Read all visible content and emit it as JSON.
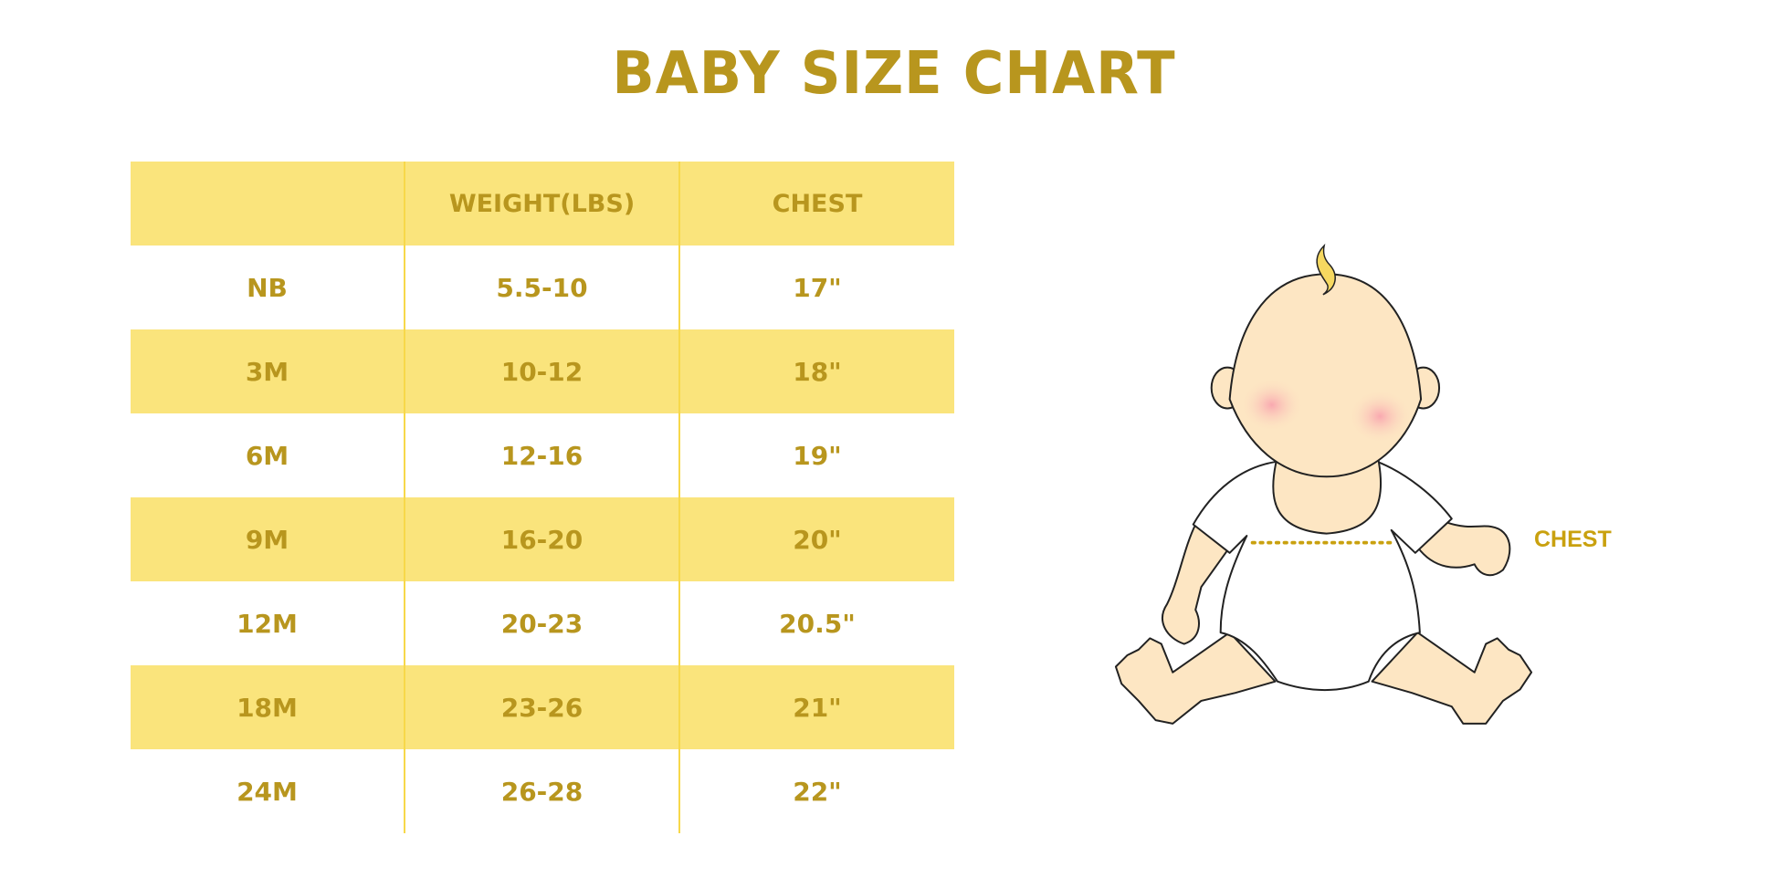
{
  "title": "BABY SIZE CHART",
  "table": {
    "headers": [
      "",
      "WEIGHT(LBS)",
      "CHEST"
    ],
    "rows": [
      {
        "size": "NB",
        "weight": "5.5-10",
        "chest": "17\""
      },
      {
        "size": "3M",
        "weight": "10-12",
        "chest": "18\""
      },
      {
        "size": "6M",
        "weight": "12-16",
        "chest": "19\""
      },
      {
        "size": "9M",
        "weight": "16-20",
        "chest": "20\""
      },
      {
        "size": "12M",
        "weight": "20-23",
        "chest": "20.5\""
      },
      {
        "size": "18M",
        "weight": "23-26",
        "chest": "21\""
      },
      {
        "size": "24M",
        "weight": "26-28",
        "chest": "22\""
      }
    ]
  },
  "illustration": {
    "chest_label": "CHEST"
  },
  "colors": {
    "text": "#B8961E",
    "band": "#FAE47C",
    "divider": "#F7D84A",
    "skin": "#FDE6C3"
  }
}
